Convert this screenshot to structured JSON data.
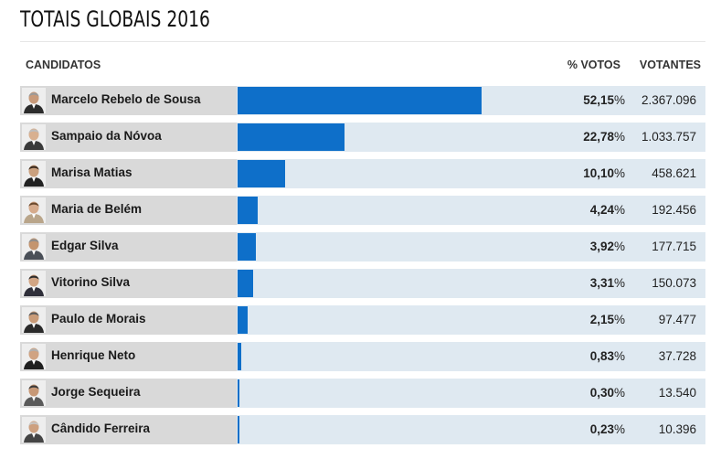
{
  "title": "TOTAIS GLOBAIS 2016",
  "headers": {
    "candidates": "CANDIDATOS",
    "percent": "% VOTOS",
    "voters": "VOTANTES"
  },
  "colors": {
    "bar": "#0e6fc9",
    "track": "#dfe9f1",
    "name_cell": "#d9d9d9"
  },
  "chart_data": {
    "type": "bar",
    "title": "TOTAIS GLOBAIS 2016",
    "categories": [
      "Marcelo Rebelo de Sousa",
      "Sampaio da Nóvoa",
      "Marisa Matias",
      "Maria de Belém",
      "Edgar Silva",
      "Vitorino Silva",
      "Paulo de Morais",
      "Henrique Neto",
      "Jorge Sequeira",
      "Cândido Ferreira"
    ],
    "values": [
      52.15,
      22.78,
      10.1,
      4.24,
      3.92,
      3.31,
      2.15,
      0.83,
      0.3,
      0.23
    ],
    "xlim": [
      0,
      100
    ],
    "percent_labels": [
      "52,15",
      "22,78",
      "10,10",
      "4,24",
      "3,92",
      "3,31",
      "2,15",
      "0,83",
      "0,30",
      "0,23"
    ],
    "percent_sign": "%",
    "voters": [
      "2.367.096",
      "1.033.757",
      "458.621",
      "192.456",
      "177.715",
      "150.073",
      "97.477",
      "37.728",
      "13.540",
      "10.396"
    ]
  }
}
